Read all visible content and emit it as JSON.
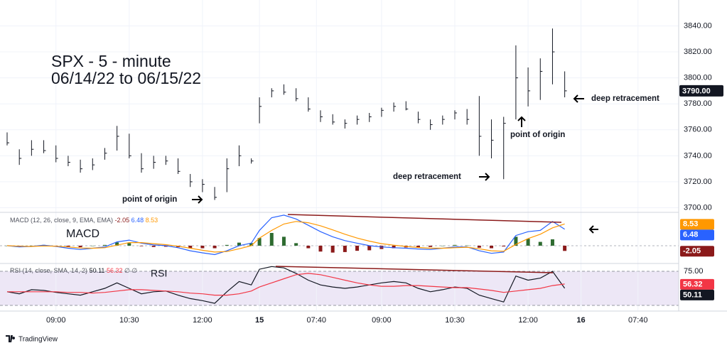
{
  "chart_data": [
    {
      "type": "ohlc",
      "title": "SPX - 5 - minute",
      "subtitle": "06/14/22 to 06/15/22",
      "annotations": [
        "point of origin",
        "deep retracement",
        "point of origin",
        "deep retracement"
      ],
      "x": [
        0,
        3,
        6,
        9,
        12,
        15,
        18,
        21,
        24,
        27,
        30,
        33,
        36,
        39,
        42,
        45,
        48,
        51,
        54,
        57,
        60,
        62,
        65,
        68,
        71,
        74,
        77,
        80,
        83,
        86,
        89,
        92,
        95,
        98,
        101,
        104,
        107,
        110,
        113,
        116,
        119,
        122,
        125,
        128,
        131,
        134,
        137
      ],
      "high": [
        3758,
        3745,
        3752,
        3752,
        3748,
        3740,
        3737,
        3738,
        3746,
        3763,
        3757,
        3742,
        3740,
        3740,
        3738,
        3726,
        3722,
        3716,
        3738,
        3748,
        3738,
        3785,
        3792,
        3795,
        3792,
        3785,
        3775,
        3772,
        3768,
        3771,
        3773,
        3777,
        3781,
        3782,
        3774,
        3768,
        3771,
        3775,
        3776,
        3786,
        3768,
        3770,
        3825,
        3808,
        3815,
        3838,
        3805
      ],
      "low": [
        3748,
        3733,
        3740,
        3742,
        3735,
        3732,
        3727,
        3729,
        3737,
        3744,
        3738,
        3727,
        3730,
        3733,
        3726,
        3716,
        3712,
        3706,
        3712,
        3732,
        3734,
        3765,
        3785,
        3787,
        3782,
        3774,
        3766,
        3764,
        3761,
        3764,
        3766,
        3770,
        3774,
        3775,
        3765,
        3760,
        3764,
        3768,
        3764,
        3740,
        3738,
        3722,
        3768,
        3778,
        3783,
        3795,
        3785
      ],
      "close": [
        3750,
        3738,
        3745,
        3744,
        3738,
        3735,
        3730,
        3733,
        3742,
        3755,
        3740,
        3730,
        3735,
        3736,
        3728,
        3720,
        3718,
        3708,
        3730,
        3740,
        3736,
        3778,
        3790,
        3789,
        3784,
        3776,
        3770,
        3766,
        3765,
        3768,
        3770,
        3775,
        3778,
        3776,
        3768,
        3764,
        3768,
        3773,
        3768,
        3755,
        3752,
        3765,
        3800,
        3790,
        3805,
        3820,
        3790
      ],
      "color": "#131722",
      "xlim": [
        -0.35,
        165
      ],
      "ylim": [
        3697,
        3849
      ],
      "yticks": [
        {
          "value": 3700,
          "label": "3700.00"
        },
        {
          "value": 3720,
          "label": "3720.00"
        },
        {
          "value": 3740,
          "label": "3740.00"
        },
        {
          "value": 3760,
          "label": "3760.00"
        },
        {
          "value": 3780,
          "label": "3780.00"
        },
        {
          "value": 3800,
          "label": "3800.00"
        },
        {
          "value": 3820,
          "label": "3820.00"
        },
        {
          "value": 3840,
          "label": "3840.00"
        }
      ],
      "grid": true,
      "last_price": {
        "value": 3790,
        "label": "3790.00"
      }
    },
    {
      "type": "macd",
      "label": "MACD",
      "header": "MACD (12, 26, close, 9, EMA, EMA)",
      "x": [
        0,
        3,
        6,
        9,
        12,
        15,
        18,
        21,
        24,
        27,
        30,
        33,
        36,
        39,
        42,
        45,
        48,
        51,
        54,
        57,
        60,
        62,
        65,
        68,
        71,
        74,
        77,
        80,
        83,
        86,
        89,
        92,
        95,
        98,
        101,
        104,
        107,
        110,
        113,
        116,
        119,
        122,
        125,
        128,
        131,
        134,
        137
      ],
      "xlim": [
        -0.35,
        165
      ],
      "ylim": [
        -6.7,
        12.8
      ],
      "series": [
        {
          "kind": "histogram",
          "up_color": "#2e6b30",
          "down_color": "#8b1a1a",
          "values": [
            0,
            -0.3,
            0,
            0.3,
            -0.1,
            -0.5,
            -0.6,
            0,
            0.3,
            1.3,
            1,
            -0.2,
            -0.5,
            -0.4,
            -0.6,
            -1,
            -1,
            -1,
            0.3,
            1.2,
            1,
            3,
            5,
            3.5,
            1,
            -1,
            -2.3,
            -2.7,
            -2.5,
            -2,
            -1.8,
            -1.3,
            -1,
            -0.7,
            -0.6,
            -0.5,
            0,
            0.3,
            0.1,
            -0.8,
            -1,
            -0.3,
            3.5,
            2.7,
            1.5,
            2.5,
            -2.05
          ]
        },
        {
          "kind": "line",
          "color": "#2962ff",
          "values": [
            0,
            -0.5,
            -0.3,
            0.2,
            -0.3,
            -1,
            -1.5,
            -1,
            -0.5,
            1.5,
            2.2,
            1,
            0.3,
            0,
            -0.8,
            -2,
            -2.8,
            -3.5,
            -2,
            0,
            1,
            6,
            11,
            12,
            10.5,
            8,
            5.5,
            3.5,
            2,
            1,
            0,
            -0.5,
            -0.8,
            -1,
            -1.3,
            -1.5,
            -1,
            -0.5,
            -0.5,
            -2,
            -3,
            -2.5,
            4,
            5.5,
            6,
            9.5,
            6.48
          ]
        },
        {
          "kind": "line",
          "color": "#ff9800",
          "values": [
            0,
            -0.2,
            -0.3,
            -0.1,
            -0.2,
            -0.5,
            -0.9,
            -1,
            -0.8,
            0.2,
            1.2,
            1.2,
            0.8,
            0.4,
            -0.2,
            -1,
            -1.8,
            -2.5,
            -2.3,
            -1.2,
            0,
            3,
            6,
            8.5,
            9.5,
            9,
            7.8,
            6.2,
            4.5,
            3,
            1.8,
            0.8,
            0.2,
            -0.3,
            -0.7,
            -1,
            -1,
            -0.8,
            -0.6,
            -1.2,
            -2,
            -2.2,
            0.5,
            2.8,
            4.5,
            7,
            8.53
          ]
        }
      ]
    },
    {
      "type": "line",
      "label": "RSI",
      "header": "RSI (14, close, SMA, 14, 2)",
      "header_extra": "∅ ∅",
      "x": [
        0,
        3,
        6,
        9,
        12,
        15,
        18,
        21,
        24,
        27,
        30,
        33,
        36,
        39,
        42,
        45,
        48,
        51,
        54,
        57,
        60,
        62,
        65,
        68,
        71,
        74,
        77,
        80,
        83,
        86,
        89,
        92,
        95,
        98,
        101,
        104,
        107,
        110,
        113,
        116,
        119,
        122,
        125,
        128,
        131,
        134,
        137
      ],
      "xlim": [
        -0.35,
        165
      ],
      "ylim": [
        17.7,
        85.4
      ],
      "yticks": [
        {
          "value": 75,
          "label": "75.00"
        }
      ],
      "band": [
        25,
        75
      ],
      "band_color": "#ede7f6",
      "series": [
        {
          "color": "#131722",
          "values": [
            45,
            42,
            48,
            47,
            44,
            42,
            40,
            45,
            50,
            58,
            50,
            42,
            45,
            46,
            40,
            35,
            32,
            28,
            45,
            60,
            55,
            78,
            82,
            80,
            72,
            62,
            55,
            52,
            50,
            52,
            55,
            58,
            60,
            58,
            50,
            45,
            48,
            52,
            50,
            40,
            35,
            30,
            68,
            62,
            65,
            75,
            50.11
          ]
        },
        {
          "color": "#f23645",
          "values": [
            45,
            45,
            45,
            45,
            45,
            44,
            44,
            43,
            44,
            46,
            48,
            48,
            47,
            46,
            45,
            43,
            42,
            40,
            40,
            42,
            46,
            52,
            58,
            64,
            70,
            72,
            70,
            66,
            62,
            58,
            55,
            53,
            53,
            54,
            54,
            53,
            52,
            51,
            51,
            49,
            47,
            44,
            46,
            48,
            50,
            54,
            56.32
          ]
        }
      ],
      "xticks": [
        {
          "value": 12,
          "label": "09:00"
        },
        {
          "value": 30,
          "label": "10:30"
        },
        {
          "value": 48,
          "label": "12:00"
        },
        {
          "value": 62,
          "label": "15"
        },
        {
          "value": 76,
          "label": "07:40"
        },
        {
          "value": 92,
          "label": "09:00"
        },
        {
          "value": 110,
          "label": "10:30"
        },
        {
          "value": 128,
          "label": "12:00"
        },
        {
          "value": 141,
          "label": "16"
        },
        {
          "value": 155,
          "label": "07:40"
        }
      ]
    }
  ],
  "footer": {
    "brand": "TradingView"
  }
}
